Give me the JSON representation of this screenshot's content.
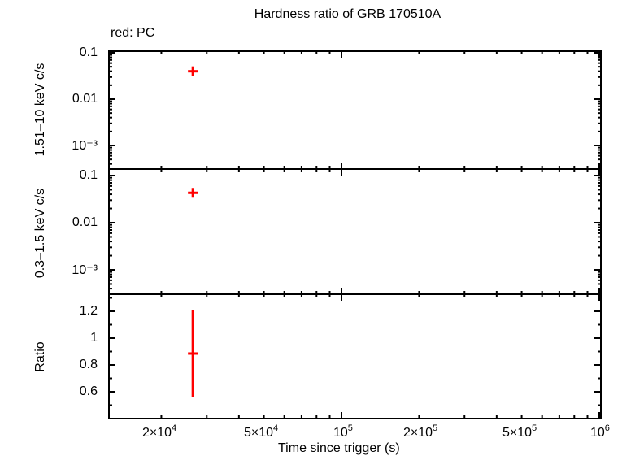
{
  "title": "Hardness ratio of GRB 170510A",
  "legend": "red: PC",
  "xlabel": "Time since trigger (s)",
  "panels": {
    "top": {
      "ylabel": "1.51–10 keV c/s",
      "ticks": [
        "0.1",
        "0.01",
        "10⁻³"
      ]
    },
    "middle": {
      "ylabel": "0.3–1.5 keV c/s",
      "ticks": [
        "0.1",
        "0.01",
        "10⁻³"
      ]
    },
    "bottom": {
      "ylabel": "Ratio",
      "ticks": [
        "1.2",
        "1",
        "0.8",
        "0.6"
      ]
    }
  },
  "x_ticks": [
    {
      "mant": "2×10",
      "exp": "4"
    },
    {
      "mant": "5×10",
      "exp": "4"
    },
    {
      "mant": "10",
      "exp": "5"
    },
    {
      "mant": "2×10",
      "exp": "5"
    },
    {
      "mant": "5×10",
      "exp": "5"
    },
    {
      "mant": "10",
      "exp": "6"
    }
  ],
  "colors": {
    "series": "#ff0000",
    "axes": "#000000"
  },
  "chart_data": [
    {
      "type": "scatter",
      "title": "Hardness ratio of GRB 170510A",
      "panel": "top",
      "xlabel": "Time since trigger (s)",
      "ylabel": "1.51–10 keV c/s",
      "xscale": "log",
      "yscale": "log",
      "xlim": [
        13000,
        1000000
      ],
      "ylim": [
        0.0003,
        0.12
      ],
      "series": [
        {
          "name": "PC",
          "color": "#ff0000",
          "x": [
            26500
          ],
          "y": [
            0.04
          ]
        }
      ]
    },
    {
      "type": "scatter",
      "panel": "middle",
      "xlabel": "Time since trigger (s)",
      "ylabel": "0.3–1.5 keV c/s",
      "xscale": "log",
      "yscale": "log",
      "xlim": [
        13000,
        1000000
      ],
      "ylim": [
        0.0003,
        0.12
      ],
      "series": [
        {
          "name": "PC",
          "color": "#ff0000",
          "x": [
            26500
          ],
          "y": [
            0.043
          ]
        }
      ]
    },
    {
      "type": "scatter",
      "panel": "bottom",
      "xlabel": "Time since trigger (s)",
      "ylabel": "Ratio",
      "xscale": "log",
      "yscale": "linear",
      "xlim": [
        13000,
        1000000
      ],
      "ylim": [
        0.42,
        1.3
      ],
      "series": [
        {
          "name": "PC",
          "color": "#ff0000",
          "x": [
            26500
          ],
          "y": [
            0.885
          ],
          "yerr_low": [
            0.56
          ],
          "yerr_high": [
            1.21
          ]
        }
      ]
    }
  ]
}
